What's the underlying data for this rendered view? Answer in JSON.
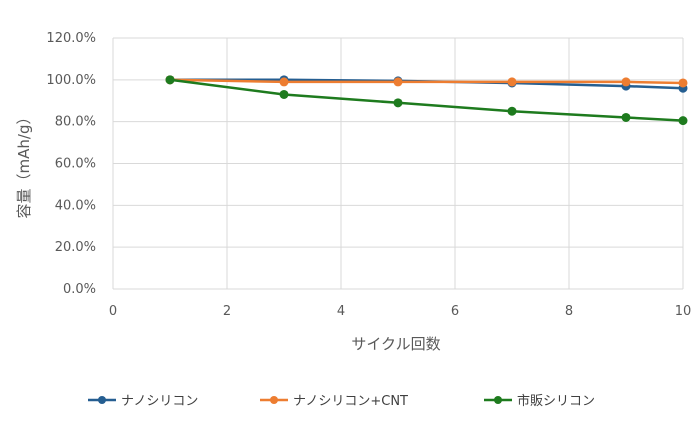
{
  "chart_data": {
    "type": "line",
    "title": "",
    "xlabel": "サイクル回数",
    "ylabel": "容量（mAh/g）",
    "xlim": [
      0,
      10
    ],
    "ylim": [
      0,
      1.2
    ],
    "x_ticks": [
      0,
      2,
      4,
      6,
      8,
      10
    ],
    "x_tick_labels": [
      "0",
      "2",
      "4",
      "6",
      "8",
      "10"
    ],
    "y_ticks": [
      0,
      0.2,
      0.4,
      0.6,
      0.8,
      1.0,
      1.2
    ],
    "y_tick_labels": [
      "0.0%",
      "20.0%",
      "40.0%",
      "60.0%",
      "80.0%",
      "100.0%",
      "120.0%"
    ],
    "grid": true,
    "legend_position": "bottom",
    "series": [
      {
        "name": "ナノシリコン",
        "color": "#255e91",
        "x": [
          1,
          3,
          5,
          7,
          9,
          10
        ],
        "y": [
          1.0,
          1.0,
          0.995,
          0.985,
          0.97,
          0.96
        ]
      },
      {
        "name": "ナノシリコン+CNT",
        "color": "#ed7d31",
        "x": [
          1,
          3,
          5,
          7,
          9,
          10
        ],
        "y": [
          1.0,
          0.99,
          0.99,
          0.99,
          0.99,
          0.985
        ]
      },
      {
        "name": "市販シリコン",
        "color": "#1e7b1e",
        "x": [
          1,
          3,
          5,
          7,
          9,
          10
        ],
        "y": [
          1.0,
          0.93,
          0.89,
          0.85,
          0.82,
          0.805
        ]
      }
    ]
  }
}
